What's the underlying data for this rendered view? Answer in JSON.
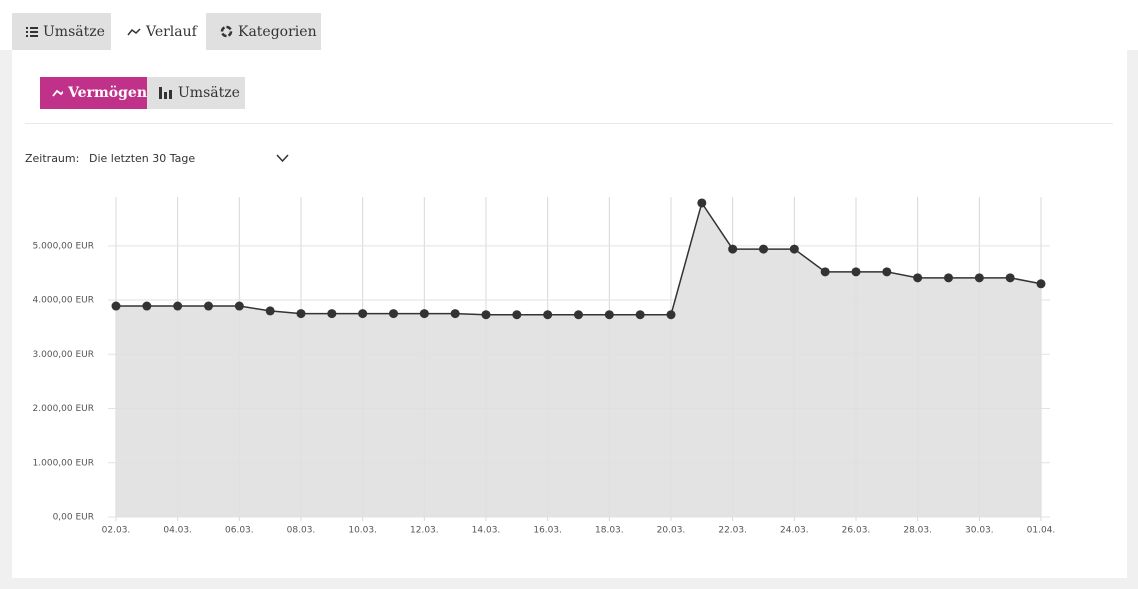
{
  "tabs": [
    "Umsätze",
    "Verlauf",
    "Kategorien"
  ],
  "subtabs": [
    "Vermögen",
    "Umsätze"
  ],
  "filter": {
    "label": "Zeitraum:",
    "value": "Die letzten 30 Tage"
  },
  "chart_data": {
    "type": "area",
    "categories": [
      "02.03.",
      null,
      "04.03.",
      null,
      "06.03.",
      null,
      "08.03.",
      null,
      "10.03.",
      null,
      "12.03.",
      null,
      "14.03.",
      null,
      "16.03.",
      null,
      "18.03.",
      null,
      "20.03.",
      null,
      "22.03.",
      null,
      "24.03.",
      null,
      "26.03.",
      null,
      "28.03.",
      null,
      "30.03.",
      null,
      "01.04."
    ],
    "values": [
      3890,
      3890,
      3890,
      3890,
      3890,
      3800,
      3750,
      3750,
      3750,
      3750,
      3750,
      3750,
      3730,
      3730,
      3730,
      3730,
      3730,
      3730,
      3730,
      5790,
      4940,
      4940,
      4940,
      4520,
      4520,
      4520,
      4410,
      4410,
      4410,
      4410,
      4300
    ],
    "color": "#333333",
    "fill": "#e0e0e0",
    "ylim": [
      0,
      5900
    ],
    "yticks": [
      {
        "value": 0,
        "label": "0,00 EUR"
      },
      {
        "value": 1000,
        "label": "1.000,00 EUR"
      },
      {
        "value": 2000,
        "label": "2.000,00 EUR"
      },
      {
        "value": 3000,
        "label": "3.000,00 EUR"
      },
      {
        "value": 4000,
        "label": "4.000,00 EUR"
      },
      {
        "value": 5000,
        "label": "5.000,00 EUR"
      }
    ],
    "grid": true
  }
}
